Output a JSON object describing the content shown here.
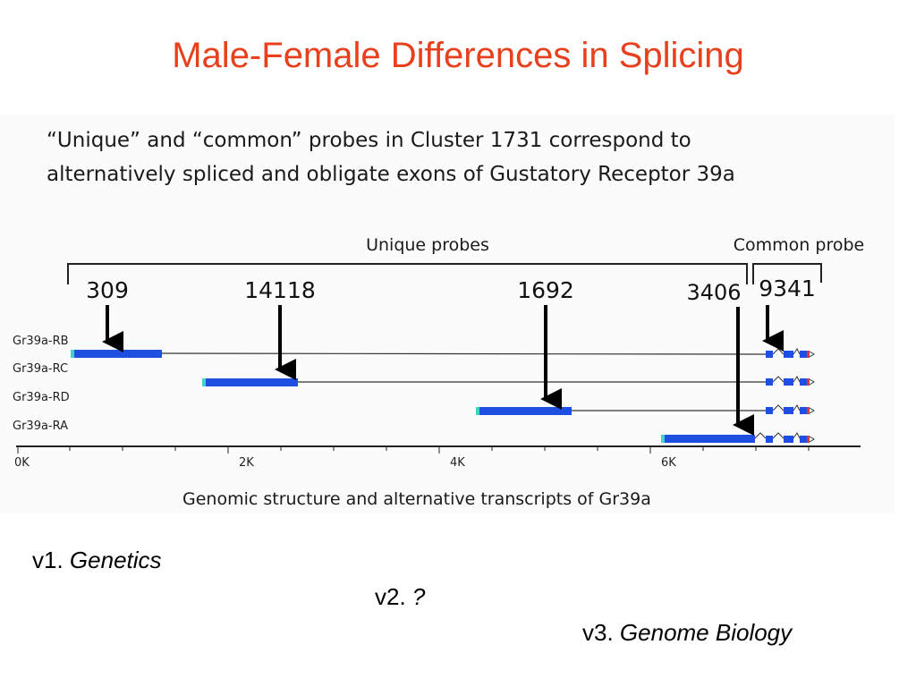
{
  "slide": {
    "title": "Male-Female Differences in Splicing"
  },
  "figure": {
    "caption_line1": "“Unique” and “common” probes in Cluster 1731 correspond to",
    "caption_line2": "alternatively spliced and obligate exons of Gustatory Receptor 39a",
    "unique_label": "Unique probes",
    "common_label": "Common probe",
    "probes": [
      "309",
      "14118",
      "1692",
      "3406",
      "9341"
    ],
    "transcripts": [
      "Gr39a-RB",
      "Gr39a-RC",
      "Gr39a-RD",
      "Gr39a-RA"
    ],
    "axis_ticks": [
      "0K",
      "2K",
      "4K",
      "6K"
    ],
    "footer": "Genomic structure and alternative transcripts of Gr39a",
    "colors": {
      "exon": "#1f4fe0",
      "utr": "#3fd4c4",
      "arrow": "#000000"
    }
  },
  "versions": {
    "v1_prefix": "v1.",
    "v1_name": "Genetics",
    "v2_prefix": "v2.",
    "v2_name": "?",
    "v3_prefix": "v3.",
    "v3_name": "Genome Biology"
  }
}
